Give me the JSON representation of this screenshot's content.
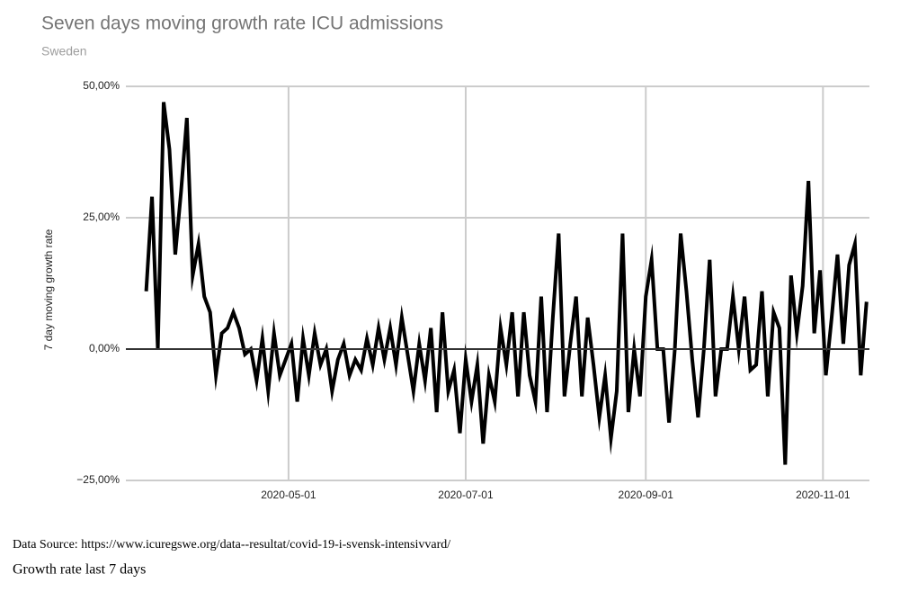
{
  "chart_data": {
    "type": "line",
    "title": "Seven days moving growth rate ICU admissions",
    "subtitle": "Sweden",
    "y_label": "7 day moving growth rate",
    "x": [
      "2020-03-13",
      "2020-03-15",
      "2020-03-17",
      "2020-03-19",
      "2020-03-21",
      "2020-03-23",
      "2020-03-25",
      "2020-03-27",
      "2020-03-29",
      "2020-03-31",
      "2020-04-02",
      "2020-04-04",
      "2020-04-06",
      "2020-04-08",
      "2020-04-10",
      "2020-04-12",
      "2020-04-14",
      "2020-04-16",
      "2020-04-18",
      "2020-04-20",
      "2020-04-22",
      "2020-04-24",
      "2020-04-26",
      "2020-04-28",
      "2020-04-30",
      "2020-05-02",
      "2020-05-04",
      "2020-05-06",
      "2020-05-08",
      "2020-05-10",
      "2020-05-12",
      "2020-05-14",
      "2020-05-16",
      "2020-05-18",
      "2020-05-20",
      "2020-05-22",
      "2020-05-24",
      "2020-05-26",
      "2020-05-28",
      "2020-05-30",
      "2020-06-01",
      "2020-06-03",
      "2020-06-05",
      "2020-06-07",
      "2020-06-09",
      "2020-06-11",
      "2020-06-13",
      "2020-06-15",
      "2020-06-17",
      "2020-06-19",
      "2020-06-21",
      "2020-06-23",
      "2020-06-25",
      "2020-06-27",
      "2020-06-29",
      "2020-07-01",
      "2020-07-03",
      "2020-07-05",
      "2020-07-07",
      "2020-07-09",
      "2020-07-11",
      "2020-07-13",
      "2020-07-15",
      "2020-07-17",
      "2020-07-19",
      "2020-07-21",
      "2020-07-23",
      "2020-07-25",
      "2020-07-27",
      "2020-07-29",
      "2020-07-31",
      "2020-08-02",
      "2020-08-04",
      "2020-08-06",
      "2020-08-08",
      "2020-08-10",
      "2020-08-12",
      "2020-08-14",
      "2020-08-16",
      "2020-08-18",
      "2020-08-20",
      "2020-08-22",
      "2020-08-24",
      "2020-08-26",
      "2020-08-28",
      "2020-08-30",
      "2020-09-01",
      "2020-09-03",
      "2020-09-05",
      "2020-09-07",
      "2020-09-09",
      "2020-09-11",
      "2020-09-13",
      "2020-09-15",
      "2020-09-17",
      "2020-09-19",
      "2020-09-21",
      "2020-09-23",
      "2020-09-25",
      "2020-09-27",
      "2020-09-29",
      "2020-10-01",
      "2020-10-03",
      "2020-10-05",
      "2020-10-07",
      "2020-10-09",
      "2020-10-11",
      "2020-10-13",
      "2020-10-15",
      "2020-10-17",
      "2020-10-19",
      "2020-10-21",
      "2020-10-23",
      "2020-10-25",
      "2020-10-27",
      "2020-10-29",
      "2020-10-31",
      "2020-11-02",
      "2020-11-04",
      "2020-11-06",
      "2020-11-08",
      "2020-11-10",
      "2020-11-12",
      "2020-11-14",
      "2020-11-16"
    ],
    "values": [
      11,
      29,
      0,
      47,
      38,
      18,
      30,
      44,
      14,
      20,
      10,
      7,
      -5,
      3,
      4,
      7,
      4,
      -1,
      0,
      -6,
      2,
      -8,
      3,
      -5,
      -2,
      1,
      -10,
      2,
      -5,
      3,
      -3,
      0,
      -8,
      -2,
      1,
      -5,
      -2,
      -4,
      2,
      -3,
      4,
      -2,
      4,
      -3,
      6,
      -1,
      -8,
      1,
      -6,
      4,
      -12,
      7,
      -8,
      -4,
      -16,
      -2,
      -10,
      -3,
      -18,
      -5,
      -10,
      4,
      -3,
      7,
      -9,
      7,
      -5,
      -10,
      10,
      -12,
      6,
      22,
      -9,
      1,
      10,
      -9,
      6,
      -3,
      -13,
      -5,
      -17,
      -8,
      22,
      -12,
      0,
      -9,
      10,
      17,
      0,
      0,
      -14,
      0,
      22,
      11,
      -2,
      -13,
      0,
      17,
      -9,
      0,
      0,
      10,
      0,
      10,
      -4,
      -3,
      11,
      -9,
      7,
      4,
      -22,
      14,
      3,
      12,
      32,
      3,
      15,
      -5,
      6,
      18,
      1,
      16,
      20,
      -5,
      9
    ],
    "color": "#000000",
    "xlim": [
      "2020-03-06",
      "2020-11-17"
    ],
    "xticks": [
      "2020-05-01",
      "2020-07-01",
      "2020-09-01",
      "2020-11-01"
    ],
    "ylim": [
      -25,
      50
    ],
    "yticks": [
      {
        "value": -25,
        "label": "−25,00%"
      },
      {
        "value": 0,
        "label": "0,00%"
      },
      {
        "value": 25,
        "label": "25,00%"
      },
      {
        "value": 50,
        "label": "50,00%"
      }
    ],
    "grid": true
  },
  "footer": {
    "source": "Data Source: https://www.icuregswe.org/data--resultat/covid-19-i-svensk-intensivvard/",
    "caption": "Growth rate last 7 days"
  }
}
